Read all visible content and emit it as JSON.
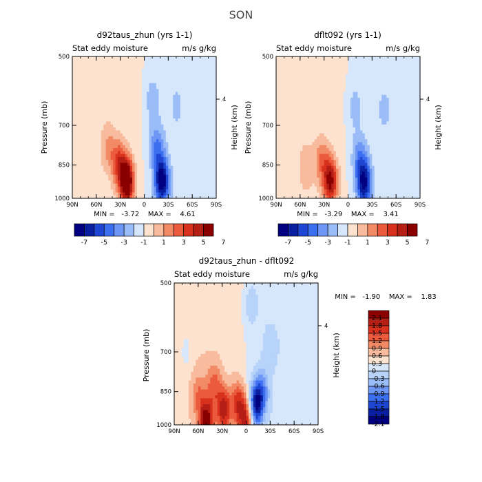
{
  "figure_title": "SON",
  "chart_data": [
    {
      "id": "top-left",
      "type": "heatmap",
      "title": "d92taus_zhun (yrs 1-1)",
      "subtitle_left": "Stat eddy moisture",
      "subtitle_right": "m/s g/kg",
      "xlabel": "",
      "ylabel": "Pressure (mb)",
      "ylabel_right": "Height (km)",
      "x_ticks": [
        "90N",
        "60N",
        "30N",
        "0",
        "30S",
        "60S",
        "90S"
      ],
      "y_ticks": [
        "500",
        "700",
        "850",
        "1000"
      ],
      "y_ticks_right": [
        "4"
      ],
      "stats": "MIN =   -3.72    MAX =    4.61",
      "colorbar_labels": [
        "-7",
        "-5",
        "-3",
        "-1",
        "1",
        "3",
        "5",
        "7"
      ],
      "features": [
        {
          "lat": 22,
          "p": 920,
          "value": 4.6
        },
        {
          "lat": 32,
          "p": 840,
          "value": 2.0
        },
        {
          "lat": 45,
          "p": 780,
          "value": 1.0
        },
        {
          "lat": -22,
          "p": 920,
          "value": -3.7
        },
        {
          "lat": -16,
          "p": 780,
          "value": -1.6
        },
        {
          "lat": -10,
          "p": 620,
          "value": -0.8
        },
        {
          "lat": -40,
          "p": 640,
          "value": -0.5
        }
      ]
    },
    {
      "id": "top-right",
      "type": "heatmap",
      "title": "dflt092 (yrs 1-1)",
      "subtitle_left": "Stat eddy moisture",
      "subtitle_right": "m/s g/kg",
      "xlabel": "",
      "ylabel": "Pressure (mb)",
      "ylabel_right": "Height (km)",
      "x_ticks": [
        "90N",
        "60N",
        "30N",
        "0",
        "30S",
        "60S",
        "90S"
      ],
      "y_ticks": [
        "500",
        "700",
        "850",
        "1000"
      ],
      "y_ticks_right": [
        "4"
      ],
      "stats": "MIN =   -3.29    MAX =    3.41",
      "colorbar_labels": [
        "-7",
        "-5",
        "-3",
        "-1",
        "1",
        "3",
        "5",
        "7"
      ],
      "features": [
        {
          "lat": 22,
          "p": 920,
          "value": 3.4
        },
        {
          "lat": 33,
          "p": 830,
          "value": 1.4
        },
        {
          "lat": 52,
          "p": 860,
          "value": 0.8
        },
        {
          "lat": -20,
          "p": 930,
          "value": -3.3
        },
        {
          "lat": -14,
          "p": 820,
          "value": -1.4
        },
        {
          "lat": -8,
          "p": 640,
          "value": -0.7
        },
        {
          "lat": -45,
          "p": 650,
          "value": -0.5
        }
      ]
    },
    {
      "id": "bottom",
      "type": "heatmap",
      "title": "d92taus_zhun - dflt092",
      "subtitle_left": "Stat eddy moisture",
      "subtitle_right": "m/s g/kg",
      "xlabel": "",
      "ylabel": "Pressure (mb)",
      "ylabel_right": "Height (km)",
      "x_ticks": [
        "90N",
        "60N",
        "30N",
        "0",
        "30S",
        "60S",
        "90S"
      ],
      "y_ticks": [
        "500",
        "700",
        "850",
        "1000"
      ],
      "y_ticks_right": [
        "4"
      ],
      "stats": "MIN =   -1.90    MAX =    1.83",
      "colorbar_labels": [
        "2.1",
        "1.8",
        "1.5",
        "1.2",
        "0.9",
        "0.6",
        "0.3",
        "0",
        "-0.3",
        "-0.6",
        "-0.9",
        "-1.2",
        "-1.5",
        "-1.8",
        "-2.1"
      ],
      "features": [
        {
          "lat": 50,
          "p": 980,
          "value": 1.8
        },
        {
          "lat": 28,
          "p": 930,
          "value": 1.5
        },
        {
          "lat": 10,
          "p": 900,
          "value": 1.2
        },
        {
          "lat": 0,
          "p": 980,
          "value": 1.6
        },
        {
          "lat": 40,
          "p": 820,
          "value": 0.8
        },
        {
          "lat": 60,
          "p": 860,
          "value": 0.6
        },
        {
          "lat": -12,
          "p": 910,
          "value": -1.9
        },
        {
          "lat": -20,
          "p": 850,
          "value": -0.9
        },
        {
          "lat": -5,
          "p": 560,
          "value": -0.4
        },
        {
          "lat": -30,
          "p": 680,
          "value": -0.35
        },
        {
          "lat": 75,
          "p": 700,
          "value": -0.3
        }
      ]
    }
  ],
  "colors": {
    "neg": [
      "#000080",
      "#0a1ea0",
      "#1e46d2",
      "#3c6ef0",
      "#6e96f5",
      "#9bbdf7",
      "#d6e6fb"
    ],
    "pos": [
      "#fde3cf",
      "#f8bb9d",
      "#f38a66",
      "#eb5a3c",
      "#d8321e",
      "#b41e14",
      "#8a0000"
    ],
    "pos_diff": [
      "#fde3cf",
      "#f8bb9d",
      "#f38a66",
      "#eb5a3c",
      "#d8321e",
      "#b41e14",
      "#8a0000"
    ],
    "neg_diff": [
      "#d6e6fb",
      "#b7d3fa",
      "#9bbdf7",
      "#6e96f5",
      "#3c6ef0",
      "#1e46d2",
      "#0a1ea0",
      "#000080"
    ]
  }
}
